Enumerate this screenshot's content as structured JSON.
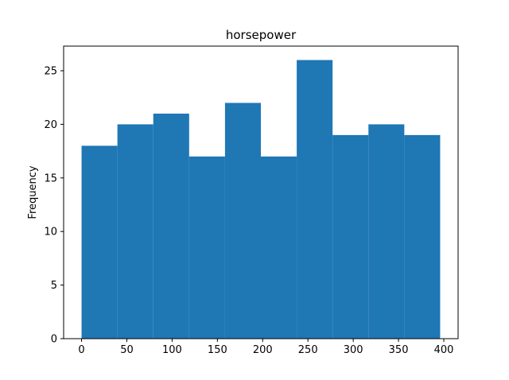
{
  "chart_data": {
    "type": "bar",
    "title": "horsepower",
    "xlabel": "",
    "ylabel": "Frequency",
    "bins": [
      {
        "x0": 0.0,
        "x1": 39.6,
        "count": 18
      },
      {
        "x0": 39.6,
        "x1": 79.2,
        "count": 20
      },
      {
        "x0": 79.2,
        "x1": 118.8,
        "count": 21
      },
      {
        "x0": 118.8,
        "x1": 158.4,
        "count": 17
      },
      {
        "x0": 158.4,
        "x1": 198.0,
        "count": 22
      },
      {
        "x0": 198.0,
        "x1": 237.6,
        "count": 17
      },
      {
        "x0": 237.6,
        "x1": 277.2,
        "count": 26
      },
      {
        "x0": 277.2,
        "x1": 316.8,
        "count": 19
      },
      {
        "x0": 316.8,
        "x1": 356.4,
        "count": 20
      },
      {
        "x0": 356.4,
        "x1": 396.0,
        "count": 19
      }
    ],
    "xlim": [
      -19.8,
      415.8
    ],
    "ylim": [
      0,
      27.3
    ],
    "x_ticks": [
      0,
      50,
      100,
      150,
      200,
      250,
      300,
      350,
      400
    ],
    "y_ticks": [
      0,
      5,
      10,
      15,
      20,
      25
    ],
    "bar_color": "#1f77b4",
    "grid": false,
    "legend": "none"
  }
}
